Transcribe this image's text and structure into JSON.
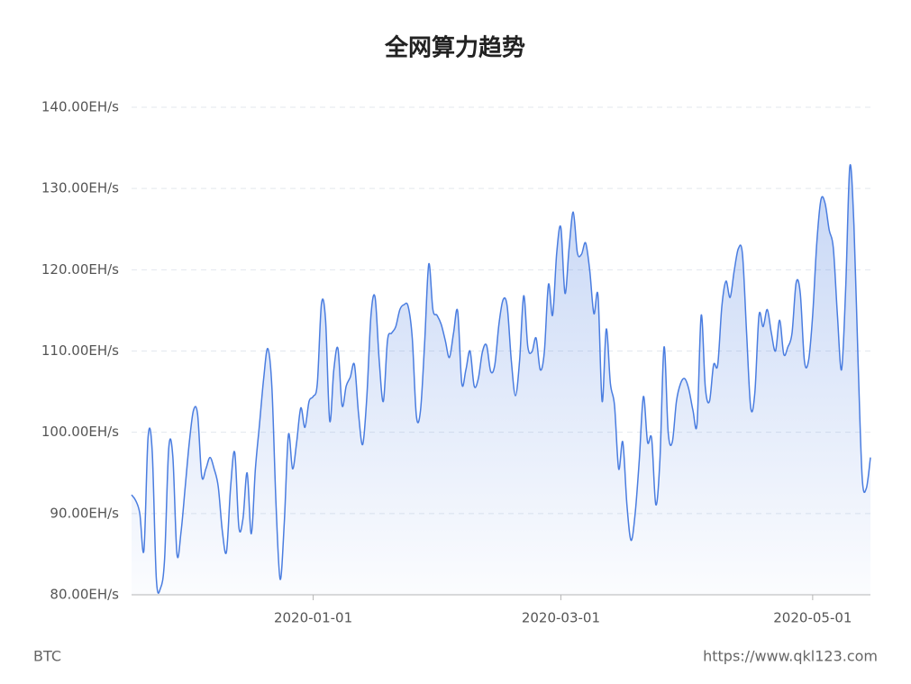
{
  "chart_data": {
    "type": "area",
    "title": "全网算力趋势",
    "source_left": "BTC",
    "source_right": "https://www.qkl123.com",
    "color": "#4a7de0",
    "grid": true,
    "xlim": [
      "2019-11-18",
      "2020-05-15"
    ],
    "xticks": [
      "2020-01-01",
      "2020-03-01",
      "2020-05-01"
    ],
    "ylim": [
      80,
      140
    ],
    "yticks": [
      {
        "value": 80,
        "label": "80.00EH/s"
      },
      {
        "value": 90,
        "label": "90.00EH/s"
      },
      {
        "value": 100,
        "label": "100.00EH/s"
      },
      {
        "value": 110,
        "label": "110.00EH/s"
      },
      {
        "value": 120,
        "label": "120.00EH/s"
      },
      {
        "value": 130,
        "label": "130.00EH/s"
      },
      {
        "value": 140,
        "label": "140.00EH/s"
      }
    ],
    "x": [
      "2019-11-18",
      "2019-11-19",
      "2019-11-20",
      "2019-11-21",
      "2019-11-22",
      "2019-11-23",
      "2019-11-24",
      "2019-11-25",
      "2019-11-26",
      "2019-11-27",
      "2019-11-28",
      "2019-11-29",
      "2019-11-30",
      "2019-12-01",
      "2019-12-02",
      "2019-12-03",
      "2019-12-04",
      "2019-12-05",
      "2019-12-06",
      "2019-12-07",
      "2019-12-08",
      "2019-12-09",
      "2019-12-10",
      "2019-12-11",
      "2019-12-12",
      "2019-12-13",
      "2019-12-14",
      "2019-12-15",
      "2019-12-16",
      "2019-12-17",
      "2019-12-18",
      "2019-12-19",
      "2019-12-20",
      "2019-12-21",
      "2019-12-22",
      "2019-12-23",
      "2019-12-24",
      "2019-12-25",
      "2019-12-26",
      "2019-12-27",
      "2019-12-28",
      "2019-12-29",
      "2019-12-30",
      "2019-12-31",
      "2020-01-01",
      "2020-01-02",
      "2020-01-03",
      "2020-01-04",
      "2020-01-05",
      "2020-01-06",
      "2020-01-07",
      "2020-01-08",
      "2020-01-09",
      "2020-01-10",
      "2020-01-11",
      "2020-01-12",
      "2020-01-13",
      "2020-01-14",
      "2020-01-15",
      "2020-01-16",
      "2020-01-17",
      "2020-01-18",
      "2020-01-19",
      "2020-01-20",
      "2020-01-21",
      "2020-01-22",
      "2020-01-23",
      "2020-01-24",
      "2020-01-25",
      "2020-01-26",
      "2020-01-27",
      "2020-01-28",
      "2020-01-29",
      "2020-01-30",
      "2020-01-31",
      "2020-02-01",
      "2020-02-02",
      "2020-02-03",
      "2020-02-04",
      "2020-02-05",
      "2020-02-06",
      "2020-02-07",
      "2020-02-08",
      "2020-02-09",
      "2020-02-10",
      "2020-02-11",
      "2020-02-12",
      "2020-02-13",
      "2020-02-14",
      "2020-02-15",
      "2020-02-16",
      "2020-02-17",
      "2020-02-18",
      "2020-02-19",
      "2020-02-20",
      "2020-02-21",
      "2020-02-22",
      "2020-02-23",
      "2020-02-24",
      "2020-02-25",
      "2020-02-26",
      "2020-02-27",
      "2020-02-28",
      "2020-02-29",
      "2020-03-01",
      "2020-03-02",
      "2020-03-03",
      "2020-03-04",
      "2020-03-05",
      "2020-03-06",
      "2020-03-07",
      "2020-03-08",
      "2020-03-09",
      "2020-03-10",
      "2020-03-11",
      "2020-03-12",
      "2020-03-13",
      "2020-03-14",
      "2020-03-15",
      "2020-03-16",
      "2020-03-17",
      "2020-03-18",
      "2020-03-19",
      "2020-03-20",
      "2020-03-21",
      "2020-03-22",
      "2020-03-23",
      "2020-03-24",
      "2020-03-25",
      "2020-03-26",
      "2020-03-27",
      "2020-03-28",
      "2020-03-29",
      "2020-03-30",
      "2020-03-31",
      "2020-04-01",
      "2020-04-02",
      "2020-04-03",
      "2020-04-04",
      "2020-04-05",
      "2020-04-06",
      "2020-04-07",
      "2020-04-08",
      "2020-04-09",
      "2020-04-10",
      "2020-04-11",
      "2020-04-12",
      "2020-04-13",
      "2020-04-14",
      "2020-04-15",
      "2020-04-16",
      "2020-04-17",
      "2020-04-18",
      "2020-04-19",
      "2020-04-20",
      "2020-04-21",
      "2020-04-22",
      "2020-04-23",
      "2020-04-24",
      "2020-04-25",
      "2020-04-26",
      "2020-04-27",
      "2020-04-28",
      "2020-04-29",
      "2020-04-30",
      "2020-05-01",
      "2020-05-02",
      "2020-05-03",
      "2020-05-04",
      "2020-05-05",
      "2020-05-06",
      "2020-05-07",
      "2020-05-08",
      "2020-05-09",
      "2020-05-10",
      "2020-05-11",
      "2020-05-12",
      "2020-05-13",
      "2020-05-14",
      "2020-05-15"
    ],
    "values": [
      92.3,
      91.6,
      90,
      85.5,
      99.4,
      97.7,
      82,
      80.8,
      84.4,
      98,
      97,
      85,
      87.8,
      93.3,
      98.8,
      102.7,
      102.2,
      94.6,
      95.5,
      96.9,
      95.5,
      93.3,
      87.8,
      85.3,
      93.3,
      97.5,
      88.3,
      89.4,
      95,
      87.5,
      95.5,
      101,
      106.6,
      110.3,
      105.5,
      91.1,
      81.9,
      88.9,
      99.7,
      95.5,
      98.8,
      103,
      100.6,
      103.8,
      104.4,
      106,
      115.8,
      113.8,
      101.4,
      107.7,
      110.3,
      103.3,
      105.7,
      106.8,
      108.3,
      102.2,
      98.5,
      104.4,
      114.4,
      116.6,
      108.8,
      103.8,
      111.3,
      112.2,
      113,
      115.1,
      115.7,
      115.5,
      111.6,
      102,
      102.7,
      111,
      120.7,
      115.1,
      114.4,
      113.3,
      111.3,
      109.2,
      112.2,
      114.9,
      106,
      107.7,
      110,
      105.7,
      106.6,
      109.9,
      110.7,
      107.5,
      108.3,
      113.3,
      116.3,
      115.5,
      108.8,
      104.5,
      108.8,
      116.8,
      110.5,
      109.9,
      111.6,
      107.7,
      109.9,
      118.2,
      114.4,
      122.1,
      125.2,
      117.1,
      122.7,
      127.1,
      122.1,
      121.9,
      123.3,
      119.9,
      114.6,
      116.8,
      103.8,
      112.7,
      106,
      103.3,
      95.5,
      98.8,
      91.1,
      86.7,
      90,
      96.6,
      104.4,
      98.8,
      99.2,
      91.1,
      96.6,
      110.5,
      100,
      98.8,
      103.8,
      106,
      106.6,
      105.3,
      102.7,
      101.1,
      114.4,
      105.5,
      103.8,
      108.3,
      108.3,
      115.5,
      118.6,
      116.6,
      119.9,
      122.6,
      121.9,
      112.2,
      103,
      104.9,
      114.4,
      113,
      115.1,
      112.2,
      110,
      113.8,
      109.6,
      110.5,
      112.2,
      118.4,
      117.1,
      108.8,
      108.8,
      114.4,
      123.3,
      128.6,
      128.2,
      124.9,
      122.7,
      114.4,
      107.7,
      117.7,
      132.7,
      125.5,
      108.8,
      94.4,
      93.1,
      96.9
    ]
  }
}
